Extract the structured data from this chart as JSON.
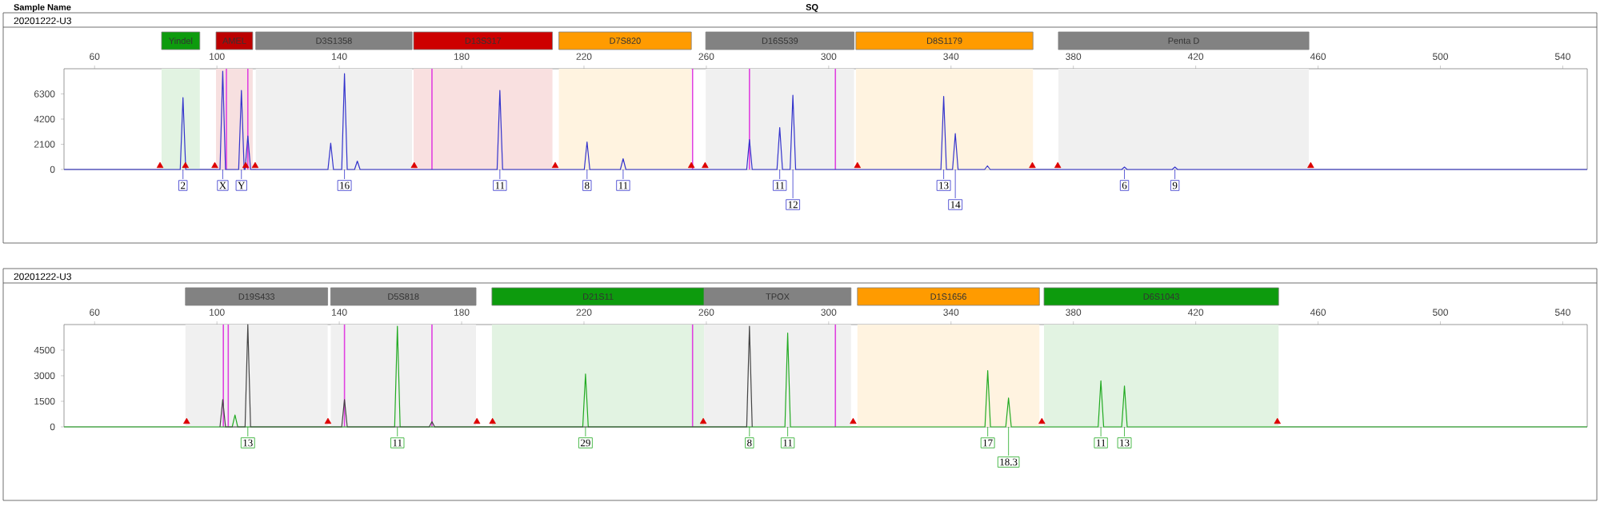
{
  "chart_data": [
    {
      "type": "line",
      "title": "20201222-U3",
      "annotations": [
        "Sample Name",
        "SQ",
        {
          "text": "2",
          "x": 88.9,
          "y": 0
        },
        {
          "text": "X",
          "x": 101.9,
          "y": 0
        },
        {
          "text": "Y",
          "x": 108.0,
          "y": 0
        },
        {
          "text": "16",
          "x": 141.7,
          "y": 0
        },
        {
          "text": "11",
          "x": 192.5,
          "y": 0
        },
        {
          "text": "8",
          "x": 221.0,
          "y": 0
        },
        {
          "text": "11",
          "x": 232.8,
          "y": 0
        },
        {
          "text": "11",
          "x": 284.0,
          "y": 0
        },
        {
          "text": "12",
          "x": 288.3,
          "y": 0
        },
        {
          "text": "13",
          "x": 337.6,
          "y": 0
        },
        {
          "text": "14",
          "x": 341.4,
          "y": 0
        },
        {
          "text": "6",
          "x": 396.7,
          "y": 0
        },
        {
          "text": "9",
          "x": 413.2,
          "y": 0
        }
      ],
      "xlim": [
        50,
        548
      ],
      "ylim": [
        0,
        8400
      ],
      "xticks": [
        60,
        100,
        140,
        180,
        220,
        260,
        300,
        340,
        380,
        420,
        460,
        500,
        540
      ],
      "yticks": [
        0,
        2100,
        4200,
        6300
      ],
      "series": [
        {
          "color": "#3333cc",
          "x": [
            50,
            88.0,
            88.9,
            89.8,
            101.0,
            101.9,
            102.8,
            107.1,
            108.0,
            108.9,
            109.2,
            110.1,
            111.0,
            136.3,
            137.2,
            138.1,
            140.8,
            141.7,
            142.6,
            145.0,
            145.9,
            146.8,
            191.6,
            192.5,
            193.4,
            220.1,
            221.0,
            221.9,
            231.9,
            232.8,
            233.7,
            273.2,
            274.1,
            275.0,
            283.1,
            284.0,
            284.9,
            287.4,
            288.3,
            289.2,
            336.7,
            337.6,
            338.5,
            340.5,
            341.4,
            342.3,
            351.0,
            351.9,
            352.8,
            395.8,
            396.7,
            397.6,
            412.3,
            413.2,
            414.1,
            548
          ],
          "values": [
            0,
            0,
            6000,
            0,
            0,
            8200,
            0,
            0,
            6600,
            0,
            0,
            2800,
            0,
            0,
            2200,
            0,
            0,
            8000,
            0,
            0,
            700,
            0,
            0,
            6600,
            0,
            0,
            2300,
            0,
            0,
            900,
            0,
            0,
            2500,
            0,
            0,
            3500,
            0,
            0,
            6200,
            0,
            0,
            6100,
            0,
            0,
            3000,
            0,
            0,
            300,
            0,
            0,
            200,
            0,
            0,
            200,
            0,
            0
          ]
        },
        {
          "type": "scatter",
          "marker": "triangle",
          "color": "#dd0000",
          "x": [
            81.4,
            89.7,
            99.3,
            109.4,
            112.5,
            164.5,
            210.6,
            255.1,
            259.6,
            309.4,
            366.6,
            374.9,
            457.6
          ],
          "values": [
            300,
            300,
            300,
            300,
            300,
            300,
            300,
            300,
            300,
            300,
            300,
            300,
            300
          ]
        }
      ],
      "ref_lines": [
        {
          "axis": "x",
          "value": 103.1,
          "color": "#e040e0"
        },
        {
          "axis": "x",
          "value": 110.1,
          "color": "#e040e0"
        },
        {
          "axis": "x",
          "value": 170.3,
          "color": "#e040e0"
        },
        {
          "axis": "x",
          "value": 255.5,
          "color": "#e040e0"
        },
        {
          "axis": "x",
          "value": 274.1,
          "color": "#e040e0"
        },
        {
          "axis": "x",
          "value": 302.2,
          "color": "#e040e0"
        }
      ],
      "bands": [
        {
          "axis": "x",
          "from": 81.9,
          "to": 94.4,
          "label": "Yindel",
          "color": "#e2f3e2"
        },
        {
          "axis": "x",
          "from": 99.7,
          "to": 111.7,
          "label": "AMEL",
          "color": "#f7e0e0"
        },
        {
          "axis": "x",
          "from": 112.7,
          "to": 163.8,
          "label": "D3S1358",
          "color": "#f0f0f0"
        },
        {
          "axis": "x",
          "from": 164.3,
          "to": 209.7,
          "label": "D13S317",
          "color": "#f9e0e0"
        },
        {
          "axis": "x",
          "from": 211.8,
          "to": 255.1,
          "label": "D7S820",
          "color": "#fff3e0"
        },
        {
          "axis": "x",
          "from": 259.8,
          "to": 308.3,
          "label": "D16S539",
          "color": "#f0f0f0"
        },
        {
          "axis": "x",
          "from": 308.9,
          "to": 366.8,
          "label": "D8S1179",
          "color": "#fff3e0"
        },
        {
          "axis": "x",
          "from": 375.1,
          "to": 457.0,
          "label": "Penta D",
          "color": "#f0f0f0"
        }
      ]
    },
    {
      "type": "line",
      "title": "20201222-U3",
      "annotations": [
        {
          "text": "13",
          "x": 110.1,
          "y": 0
        },
        {
          "text": "11",
          "x": 159.0,
          "y": 0
        },
        {
          "text": "29",
          "x": 220.5,
          "y": 0
        },
        {
          "text": "8",
          "x": 274.1,
          "y": 0
        },
        {
          "text": "11",
          "x": 286.6,
          "y": 0
        },
        {
          "text": "17",
          "x": 352.0,
          "y": 0
        },
        {
          "text": "18.3",
          "x": 358.8,
          "y": 0
        },
        {
          "text": "11",
          "x": 389.0,
          "y": 0
        },
        {
          "text": "13",
          "x": 396.7,
          "y": 0
        }
      ],
      "xlim": [
        50,
        548
      ],
      "ylim": [
        0,
        6000
      ],
      "xticks": [
        60,
        100,
        140,
        180,
        220,
        260,
        300,
        340,
        380,
        420,
        460,
        500,
        540
      ],
      "yticks": [
        0,
        1500,
        3000,
        4500
      ],
      "series": [
        {
          "color": "#22aa22",
          "x": [
            50,
            105.0,
            105.9,
            106.8,
            158.1,
            159.0,
            159.9,
            219.6,
            220.5,
            221.4,
            285.7,
            286.6,
            287.5,
            351.1,
            352.0,
            352.9,
            357.9,
            358.8,
            359.7,
            388.1,
            389.0,
            389.9,
            395.8,
            396.7,
            397.6,
            548
          ],
          "values": [
            0,
            0,
            700,
            0,
            0,
            5900,
            0,
            0,
            3100,
            0,
            0,
            5500,
            0,
            0,
            3300,
            0,
            0,
            1700,
            0,
            0,
            2700,
            0,
            0,
            2400,
            0,
            0
          ]
        },
        {
          "color": "#444444",
          "x": [
            101.0,
            101.9,
            102.8,
            109.2,
            110.1,
            111.0,
            140.8,
            141.7,
            142.6,
            169.4,
            170.3,
            171.2,
            273.2,
            274.1,
            275.0
          ],
          "values": [
            0,
            1600,
            0,
            0,
            6000,
            0,
            0,
            1600,
            0,
            0,
            300,
            0,
            0,
            5900,
            0
          ]
        },
        {
          "type": "scatter",
          "marker": "triangle",
          "color": "#dd0000",
          "x": [
            90.1,
            136.3,
            185.0,
            190.1,
            259.0,
            308.0,
            369.7,
            446.7
          ],
          "values": [
            300,
            300,
            300,
            300,
            300,
            300,
            300,
            300
          ]
        }
      ],
      "ref_lines": [
        {
          "axis": "x",
          "value": 102.1,
          "color": "#e040e0"
        },
        {
          "axis": "x",
          "value": 103.7,
          "color": "#e040e0"
        },
        {
          "axis": "x",
          "value": 141.7,
          "color": "#e040e0"
        },
        {
          "axis": "x",
          "value": 170.3,
          "color": "#e040e0"
        },
        {
          "axis": "x",
          "value": 255.5,
          "color": "#e040e0"
        },
        {
          "axis": "x",
          "value": 302.2,
          "color": "#e040e0"
        }
      ],
      "bands": [
        {
          "axis": "x",
          "from": 89.7,
          "to": 136.2,
          "label": "D19S433",
          "color": "#f0f0f0"
        },
        {
          "axis": "x",
          "from": 137.2,
          "to": 184.7,
          "label": "D5S818",
          "color": "#f0f0f0"
        },
        {
          "axis": "x",
          "from": 189.9,
          "to": 259.3,
          "label": "D21S11",
          "color": "#e2f3e2"
        },
        {
          "axis": "x",
          "from": 259.3,
          "to": 307.3,
          "label": "TPOX",
          "color": "#f0f0f0"
        },
        {
          "axis": "x",
          "from": 309.4,
          "to": 368.9,
          "label": "D1S1656",
          "color": "#fff3e0"
        },
        {
          "axis": "x",
          "from": 370.4,
          "to": 447.1,
          "label": "D6S1043",
          "color": "#e2f3e2"
        }
      ]
    }
  ]
}
